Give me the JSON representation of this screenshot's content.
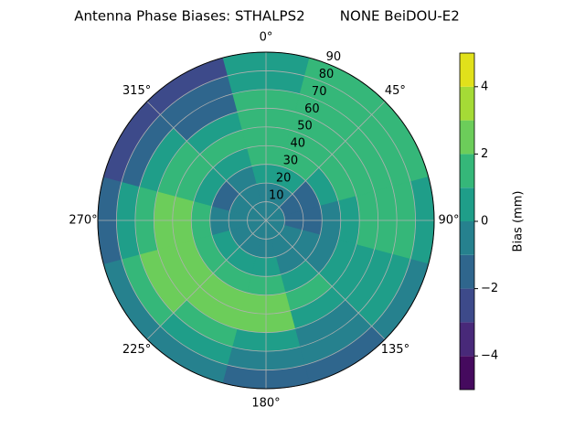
{
  "chart_data": {
    "type": "polar-contour",
    "title": "Antenna Phase Biases: STHALPS2        NONE BeiDOU-E2",
    "colorbar_label": "Bias (mm)",
    "theta": [
      0,
      30,
      60,
      90,
      120,
      150,
      180,
      210,
      240,
      270,
      300,
      330
    ],
    "r": [
      5,
      15,
      25,
      35,
      45,
      55,
      65,
      75,
      85
    ],
    "z": [
      [
        -0.5,
        -0.5,
        -0.5,
        -0.5,
        -0.5,
        -0.5,
        -0.5,
        -0.5,
        -0.5,
        -0.5,
        -0.5,
        -0.5
      ],
      [
        -0.5,
        -0.5,
        -1.5,
        -1.5,
        -0.5,
        -0.5,
        -0.5,
        -0.5,
        -0.5,
        -0.5,
        -0.5,
        -0.5
      ],
      [
        0.5,
        0.5,
        -1.5,
        -1.5,
        -0.5,
        -0.5,
        0.5,
        0.5,
        0.5,
        -0.5,
        -1.5,
        -0.5
      ],
      [
        1.5,
        1.5,
        0.5,
        -0.5,
        -0.5,
        0.5,
        1.5,
        1.5,
        1.5,
        1.5,
        0.5,
        0.5
      ],
      [
        1.5,
        1.5,
        1.5,
        0.5,
        0.5,
        1.5,
        2.5,
        2.5,
        2.5,
        2.5,
        1.5,
        1.5
      ],
      [
        1.5,
        1.5,
        1.5,
        1.5,
        0.5,
        0.5,
        2.5,
        2.5,
        2.5,
        2.5,
        1.5,
        0.5
      ],
      [
        1.5,
        1.5,
        1.5,
        1.5,
        0.5,
        -0.5,
        0.5,
        1.5,
        2.5,
        1.5,
        0.5,
        -1.5
      ],
      [
        0.5,
        1.5,
        1.5,
        1.5,
        0.5,
        -0.5,
        -0.5,
        0.5,
        1.5,
        0.5,
        -1.5,
        -1.5
      ],
      [
        0.5,
        1.5,
        1.5,
        0.5,
        -0.5,
        -1.5,
        -1.5,
        -0.5,
        -0.5,
        -1.5,
        -2.5,
        -2.5
      ]
    ],
    "rlim": [
      0,
      90
    ],
    "rticks": [
      10,
      20,
      30,
      40,
      50,
      60,
      70,
      80,
      90
    ],
    "thetaticks": [
      {
        "value": 0,
        "label": "0°"
      },
      {
        "value": 45,
        "label": "45°"
      },
      {
        "value": 90,
        "label": "90°"
      },
      {
        "value": 135,
        "label": "135°"
      },
      {
        "value": 180,
        "label": "180°"
      },
      {
        "value": 225,
        "label": "225°"
      },
      {
        "value": 270,
        "label": "270°"
      },
      {
        "value": 315,
        "label": "315°"
      }
    ],
    "levels": [
      -5,
      -4,
      -3,
      -2,
      -1,
      0,
      1,
      2,
      3,
      4,
      5
    ],
    "colors": [
      "#450a5e",
      "#482979",
      "#3d4a8a",
      "#2f668d",
      "#26818e",
      "#1f9e89",
      "#35b779",
      "#6ccd5a",
      "#a5db36",
      "#e1e11b"
    ],
    "clim": [
      -5,
      5
    ],
    "cticks": [
      {
        "value": -4,
        "label": "−4"
      },
      {
        "value": -2,
        "label": "−2"
      },
      0,
      2,
      4
    ],
    "grid": true
  }
}
